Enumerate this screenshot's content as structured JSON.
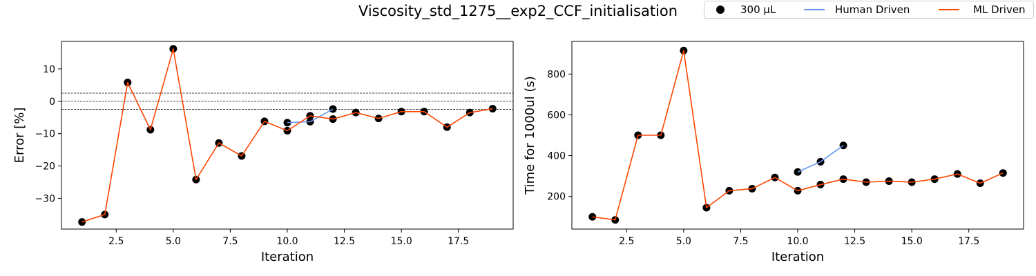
{
  "figure": {
    "suptitle": "Viscosity_std_1275__exp2_CCF_initialisation"
  },
  "legend": {
    "items": [
      {
        "label": "300 µL",
        "kind": "marker",
        "color": "#000000"
      },
      {
        "label": "Human Driven",
        "kind": "line",
        "color": "#6495ED"
      },
      {
        "label": "ML Driven",
        "kind": "line",
        "color": "#FF4500"
      }
    ]
  },
  "chart_data": [
    {
      "type": "line",
      "title": "",
      "xlabel": "Iteration",
      "ylabel": "Error [%]",
      "xlim": [
        0.1,
        19.9
      ],
      "ylim": [
        -39.5,
        18.5
      ],
      "xticks": [
        2.5,
        5.0,
        7.5,
        10.0,
        12.5,
        15.0,
        17.5
      ],
      "xtick_labels": [
        "2.5",
        "5.0",
        "7.5",
        "10.0",
        "12.5",
        "15.0",
        "17.5"
      ],
      "yticks": [
        10,
        0,
        -10,
        -20,
        -30
      ],
      "ytick_labels": [
        "10",
        "0",
        "−10",
        "−20",
        "−30"
      ],
      "hlines": [
        2.5,
        0,
        -2.5
      ],
      "grid": false,
      "series": [
        {
          "name": "ML Driven",
          "color": "#FF4500",
          "x": [
            1,
            2,
            3,
            4,
            5,
            6,
            7,
            8,
            9,
            10,
            11,
            12,
            13,
            14,
            15,
            16,
            17,
            18,
            19
          ],
          "y": [
            -37.3,
            -35.0,
            5.8,
            -8.8,
            16.2,
            -24.2,
            -12.9,
            -16.9,
            -6.2,
            -9.1,
            -4.5,
            -5.5,
            -3.5,
            -5.3,
            -3.2,
            -3.2,
            -8.0,
            -3.5,
            -2.3
          ]
        },
        {
          "name": "Human Driven",
          "color": "#6495ED",
          "x": [
            10,
            11,
            12
          ],
          "y": [
            -6.6,
            -6.3,
            -2.4
          ]
        }
      ]
    },
    {
      "type": "line",
      "title": "",
      "xlabel": "Iteration",
      "ylabel": "Time for 1000ul (s)",
      "xlim": [
        0.1,
        19.9
      ],
      "ylim": [
        40,
        960
      ],
      "xticks": [
        2.5,
        5.0,
        7.5,
        10.0,
        12.5,
        15.0,
        17.5
      ],
      "xtick_labels": [
        "2.5",
        "5.0",
        "7.5",
        "10.0",
        "12.5",
        "15.0",
        "17.5"
      ],
      "yticks": [
        200,
        400,
        600,
        800
      ],
      "ytick_labels": [
        "200",
        "400",
        "600",
        "800"
      ],
      "hlines": [],
      "grid": false,
      "series": [
        {
          "name": "ML Driven",
          "color": "#FF4500",
          "x": [
            1,
            2,
            3,
            4,
            5,
            6,
            7,
            8,
            9,
            10,
            11,
            12,
            13,
            14,
            15,
            16,
            17,
            18,
            19
          ],
          "y": [
            100,
            85,
            500,
            500,
            915,
            145,
            228,
            238,
            293,
            228,
            258,
            285,
            270,
            275,
            270,
            285,
            310,
            265,
            315
          ]
        },
        {
          "name": "Human Driven",
          "color": "#6495ED",
          "x": [
            10,
            11,
            12
          ],
          "y": [
            320,
            370,
            450
          ]
        }
      ]
    }
  ]
}
